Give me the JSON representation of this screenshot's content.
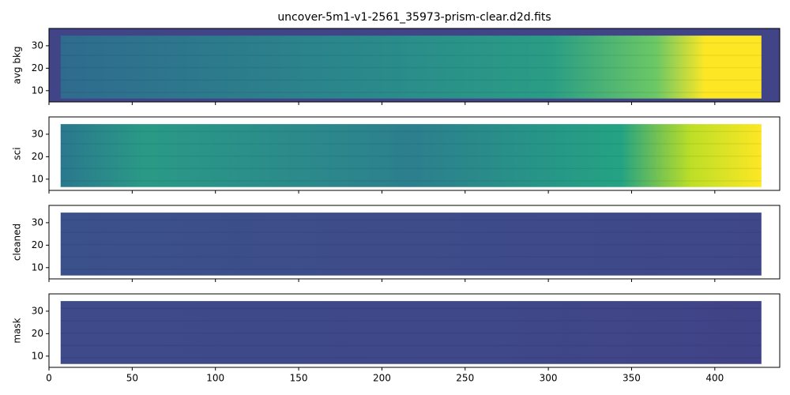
{
  "chart_data": [
    {
      "type": "image",
      "title": "uncover-5m1-v1-2561_35973-prism-clear.d2d.fits",
      "ylabel": "avg bkg",
      "xlim": [
        0,
        439
      ],
      "ylim": [
        5,
        37.7
      ],
      "xticks": [
        0,
        50,
        100,
        150,
        200,
        250,
        300,
        350,
        400
      ],
      "yticks": [
        10,
        20,
        30
      ]
    },
    {
      "type": "image",
      "ylabel": "sci",
      "xlim": [
        0,
        439
      ],
      "ylim": [
        5,
        37.7
      ],
      "xticks": [
        0,
        50,
        100,
        150,
        200,
        250,
        300,
        350,
        400
      ],
      "yticks": [
        10,
        20,
        30
      ]
    },
    {
      "type": "image",
      "ylabel": "cleaned",
      "xlim": [
        0,
        439
      ],
      "ylim": [
        5,
        37.7
      ],
      "xticks": [
        0,
        50,
        100,
        150,
        200,
        250,
        300,
        350,
        400
      ],
      "yticks": [
        10,
        20,
        30
      ]
    },
    {
      "type": "image",
      "ylabel": "mask",
      "xlim": [
        0,
        439
      ],
      "ylim": [
        5,
        37.7
      ],
      "xticks": [
        0,
        50,
        100,
        150,
        200,
        250,
        300,
        350,
        400
      ],
      "yticks": [
        10,
        20,
        30
      ]
    }
  ]
}
